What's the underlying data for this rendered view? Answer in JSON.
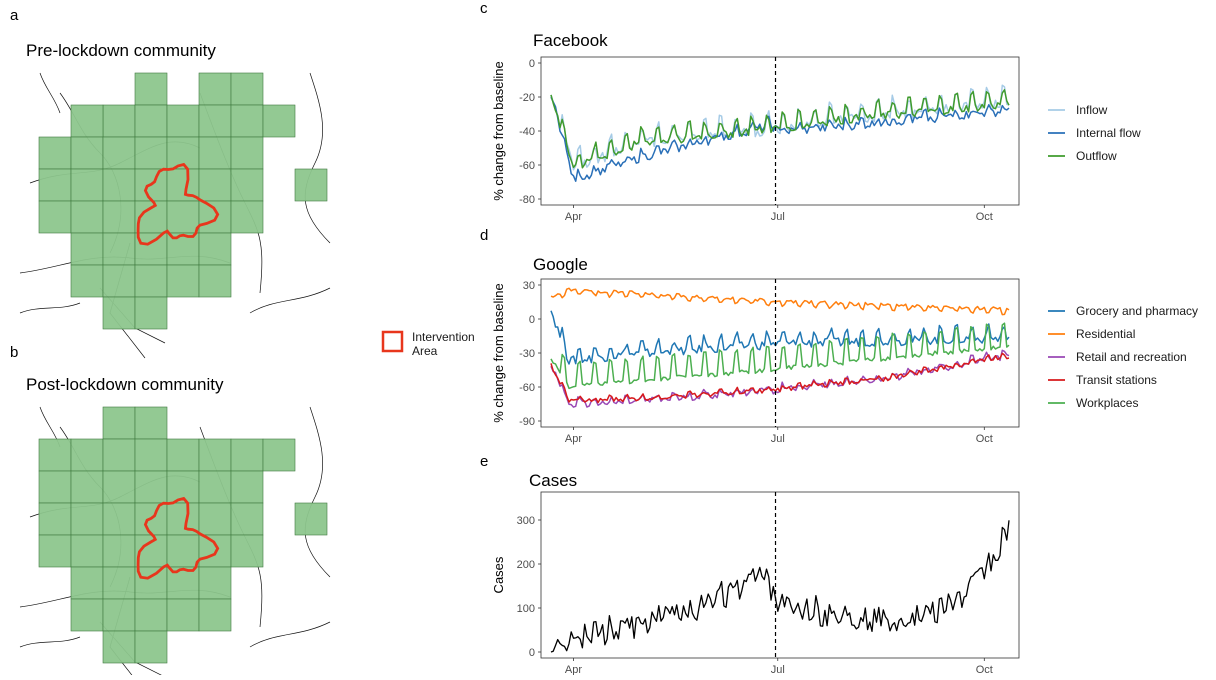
{
  "panels": {
    "a": {
      "letter": "a",
      "title": "Pre-lockdown community"
    },
    "b": {
      "letter": "b",
      "title": "Post-lockdown community"
    },
    "c": {
      "letter": "c",
      "title": "Facebook"
    },
    "d": {
      "letter": "d",
      "title": "Google"
    },
    "e": {
      "letter": "e",
      "title": "Cases"
    }
  },
  "map_legend": {
    "line1": "Intervention",
    "line2": "Area"
  },
  "colors": {
    "grid_fill": "#8dc68d",
    "grid_stroke": "#3f7a3f",
    "intervention": "#e8361c",
    "inflow": "#a6cbe6",
    "internal_flow": "#2a70b8",
    "outflow": "#3f9b2d",
    "grocery": "#1f77b4",
    "residential": "#ff7f0e",
    "retail": "#9a48b5",
    "transit": "#d7191c",
    "workplaces": "#4caf50"
  },
  "chart_data": [
    {
      "id": "facebook",
      "type": "line",
      "title": "Facebook",
      "ylabel": "% change from baseline",
      "ylim": [
        -80,
        0
      ],
      "yticks": [
        "0",
        "-20",
        "-40",
        "-60",
        "-80"
      ],
      "xticks": [
        "Apr",
        "Jul",
        "Oct"
      ],
      "xrange": [
        "2020-03-22",
        "2020-10-12"
      ],
      "vline": "2020-06-30",
      "series": [
        {
          "name": "Inflow",
          "base": [
            [
              0,
              -17
            ],
            [
              10,
              -60
            ],
            [
              40,
              -45
            ],
            [
              100,
              -37
            ],
            [
              120,
              -33
            ],
            [
              200,
              -22
            ]
          ],
          "amp": 7,
          "noise": 3,
          "color": "#a6cbe6"
        },
        {
          "name": "Internal flow",
          "base": [
            [
              0,
              -17
            ],
            [
              10,
              -68
            ],
            [
              40,
              -55
            ],
            [
              98,
              -36
            ],
            [
              102,
              -40
            ],
            [
              120,
              -38
            ],
            [
              200,
              -28
            ]
          ],
          "amp": 2.5,
          "noise": 2.5,
          "color": "#2a70b8"
        },
        {
          "name": "Outflow",
          "base": [
            [
              0,
              -17
            ],
            [
              10,
              -60
            ],
            [
              40,
              -45
            ],
            [
              100,
              -37
            ],
            [
              120,
              -33
            ],
            [
              200,
              -23
            ]
          ],
          "amp": 6,
          "noise": 2.5,
          "color": "#3f9b2d"
        }
      ]
    },
    {
      "id": "google",
      "type": "line",
      "title": "Google",
      "ylabel": "% change from baseline",
      "ylim": [
        -90,
        30
      ],
      "yticks": [
        "30",
        "0",
        "-30",
        "-60",
        "-90"
      ],
      "xticks": [
        "Apr",
        "Jul",
        "Oct"
      ],
      "xrange": [
        "2020-03-22",
        "2020-10-12"
      ],
      "vline": "2020-06-30",
      "series": [
        {
          "name": "Grocery and pharmacy",
          "base": [
            [
              0,
              10
            ],
            [
              8,
              -35
            ],
            [
              30,
              -30
            ],
            [
              100,
              -20
            ],
            [
              200,
              -15
            ]
          ],
          "amp": 7,
          "noise": 4,
          "color": "#1f77b4"
        },
        {
          "name": "Residential",
          "base": [
            [
              0,
              18
            ],
            [
              8,
              25
            ],
            [
              40,
              22
            ],
            [
              100,
              15
            ],
            [
              200,
              8
            ]
          ],
          "amp": 3,
          "noise": 1.5,
          "color": "#ff7f0e"
        },
        {
          "name": "Retail and recreation",
          "base": [
            [
              0,
              -40
            ],
            [
              8,
              -75
            ],
            [
              40,
              -72
            ],
            [
              100,
              -62
            ],
            [
              150,
              -52
            ],
            [
              200,
              -33
            ]
          ],
          "amp": 3,
          "noise": 3,
          "color": "#9a48b5"
        },
        {
          "name": "Transit stations",
          "base": [
            [
              0,
              -40
            ],
            [
              8,
              -72
            ],
            [
              40,
              -70
            ],
            [
              100,
              -62
            ],
            [
              150,
              -52
            ],
            [
              200,
              -33
            ]
          ],
          "amp": 2,
          "noise": 2,
          "color": "#d7191c"
        },
        {
          "name": "Workplaces",
          "base": [
            [
              0,
              -30
            ],
            [
              8,
              -55
            ],
            [
              40,
              -50
            ],
            [
              100,
              -40
            ],
            [
              200,
              -20
            ]
          ],
          "amp": 15,
          "noise": 2,
          "color": "#4caf50"
        }
      ]
    },
    {
      "id": "cases",
      "type": "line",
      "title": "Cases",
      "ylabel": "Cases",
      "ylim": [
        0,
        350
      ],
      "yticks": [
        "300",
        "200",
        "100",
        "0"
      ],
      "xticks": [
        "Apr",
        "Jul",
        "Oct"
      ],
      "xrange": [
        "2020-03-22",
        "2020-10-12"
      ],
      "vline": "2020-06-30",
      "series": [
        {
          "name": "",
          "base": [
            [
              0,
              10
            ],
            [
              15,
              40
            ],
            [
              40,
              60
            ],
            [
              70,
              110
            ],
            [
              96,
              175
            ],
            [
              100,
              110
            ],
            [
              120,
              90
            ],
            [
              150,
              70
            ],
            [
              170,
              90
            ],
            [
              185,
              130
            ],
            [
              198,
              220
            ],
            [
              204,
              280
            ]
          ],
          "amp": 10,
          "noise": 28,
          "color": "#000000"
        }
      ]
    }
  ]
}
